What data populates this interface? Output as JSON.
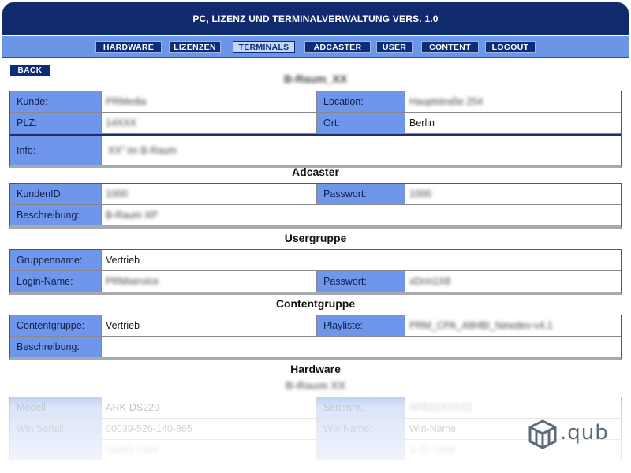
{
  "app": {
    "title": "PC, LIZENZ UND TERMINALVERWALTUNG VERS. 1.0"
  },
  "nav": {
    "hardware": "HARDWARE",
    "lizenzen": "LIZENZEN",
    "terminals": "TERMINALS",
    "adcaster": "ADCASTER",
    "user": "USER",
    "content": "CONTENT",
    "logout": "LOGOUT",
    "active": "TERMINALS"
  },
  "back_label": "BACK",
  "terminal": {
    "name": "B-Raum_XX",
    "kunde_label": "Kunde:",
    "kunde_value": "PRMedia",
    "location_label": "Location:",
    "location_value": "Hauptstraße 254",
    "plz_label": "PLZ:",
    "plz_value": "14XXX",
    "ort_label": "Ort:",
    "ort_value": "Berlin",
    "info_label": "Info:",
    "info_value": "XX\" im B-Raum"
  },
  "adcaster": {
    "heading": "Adcaster",
    "kundenid_label": "KundenID:",
    "kundenid_value": "1000",
    "passwort_label": "Passwort:",
    "passwort_value": "1000",
    "beschreibung_label": "Beschreibung:",
    "beschreibung_value": "B-Raum XP"
  },
  "usergruppe": {
    "heading": "Usergruppe",
    "gruppenname_label": "Gruppenname:",
    "gruppenname_value": "Vertrieb",
    "loginname_label": "Login-Name:",
    "loginname_value": "PRMservice",
    "passwort_label": "Passwort:",
    "passwort_value": "xDrm1X8"
  },
  "contentgruppe": {
    "heading": "Contentgruppe",
    "contentgruppe_label": "Contentgruppe:",
    "contentgruppe_value": "Vertrieb",
    "playliste_label": "Playliste:",
    "playliste_value": "PRM_CPA_AltHBI_Newdev-v4.1",
    "beschreibung_label": "Beschreibung:",
    "beschreibung_value": ""
  },
  "hardware": {
    "heading": "Hardware",
    "subheading": "B-Raum XX",
    "modell_label": "Modell:",
    "modell_value": "ARK-DS220",
    "seriennr_label": "Seriennr.:",
    "seriennr_value": "AFB3XXXXX1",
    "winserial_label": "Win Serial:",
    "winserial_value": "00039-526-140-865",
    "winname_label": "Win Name:",
    "winname_value": "Win-Name",
    "row3_left_value": "00453-1684",
    "row3_right_value": "A-55-7436"
  },
  "logo": {
    "text": ".qub"
  },
  "colors": {
    "header": "#102a6e",
    "nav": "#6b95e6",
    "label_cell": "#6f96ea",
    "button": "#0c2d7a"
  }
}
